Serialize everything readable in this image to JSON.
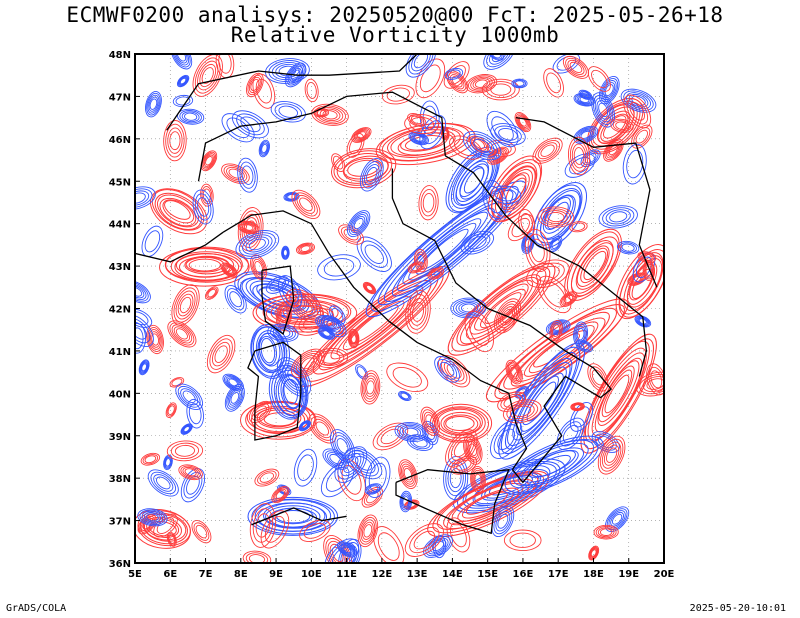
{
  "header": {
    "title_line1": "ECMWF0200 analisys: 20250520@00 FcT: 2025-05-26+18",
    "title_line2": "Relative Vorticity 1000mb"
  },
  "map": {
    "lon_labels": [
      "5E",
      "6E",
      "7E",
      "8E",
      "9E",
      "10E",
      "11E",
      "12E",
      "13E",
      "14E",
      "15E",
      "16E",
      "17E",
      "18E",
      "19E",
      "20E"
    ],
    "lat_labels": [
      "36N",
      "37N",
      "38N",
      "39N",
      "40N",
      "41N",
      "42N",
      "43N",
      "44N",
      "45N",
      "46N",
      "47N",
      "48N"
    ],
    "lon_range": [
      5,
      20
    ],
    "lat_range": [
      36,
      48
    ],
    "contour_colors": {
      "positive": "#ff3b3b",
      "negative": "#3355ff",
      "coast": "#000000"
    }
  },
  "footer": {
    "left": "GrADS/COLA",
    "right": "2025-05-20-10:01"
  }
}
